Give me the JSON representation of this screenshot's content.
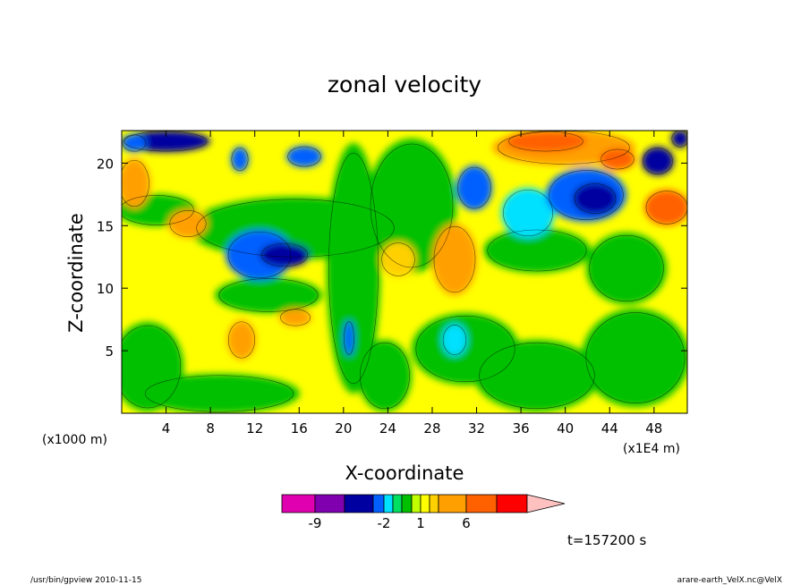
{
  "chart_data": {
    "type": "heatmap",
    "title": "zonal velocity",
    "xlabel": "X-coordinate",
    "ylabel": "Z-coordinate",
    "x_unit": "(x1E4 m)",
    "y_unit": "(x1000 m)",
    "xlim": [
      0,
      51
    ],
    "ylim": [
      0,
      22.6
    ],
    "x_ticks": [
      4,
      8,
      12,
      16,
      20,
      24,
      28,
      32,
      36,
      40,
      44,
      48
    ],
    "y_ticks": [
      5,
      10,
      15,
      20
    ],
    "colorbar": {
      "levels": [
        -12,
        -9,
        -6,
        -3,
        -2,
        -1,
        0,
        0.5,
        1,
        2,
        3,
        6,
        9,
        12
      ],
      "colors": [
        "#e000b0",
        "#8000b0",
        "#0000a0",
        "#0060ff",
        "#00e0ff",
        "#00e060",
        "#00c000",
        "#c0ff00",
        "#ffff00",
        "#ffd000",
        "#ffa000",
        "#ff6000",
        "#ff0000",
        "#ff8080",
        "#ffc0c0"
      ],
      "tick_labels": [
        "-9",
        "-2",
        "1",
        "6"
      ]
    },
    "time_label": "t=157200 s",
    "legend": "none",
    "grid": false
  },
  "footer": {
    "left": "/usr/bin/gpview  2010-11-15",
    "right": "arare-earth_VelX.nc@VelX"
  }
}
